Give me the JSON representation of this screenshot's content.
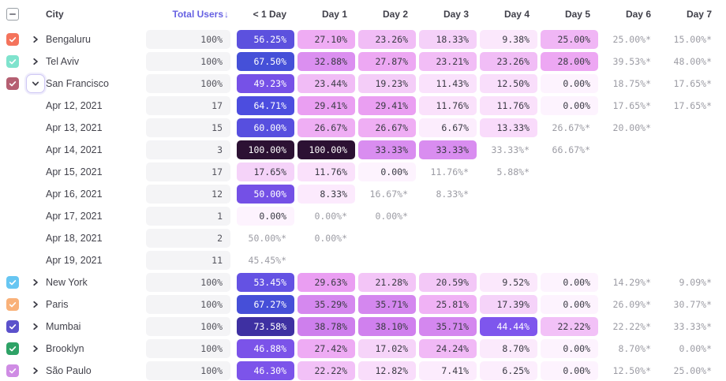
{
  "table": {
    "header": {
      "select_all_state": "indeterminate",
      "columns": [
        "City",
        "Total Users",
        "< 1 Day",
        "Day 1",
        "Day 2",
        "Day 3",
        "Day 4",
        "Day 5",
        "Day 6",
        "Day 7"
      ],
      "sort_column": "Total Users",
      "sort_icon": "↓"
    },
    "rows": [
      {
        "type": "city",
        "name": "Bengaluru",
        "checkbox_color": "#f4735c",
        "expanded": false,
        "total": "100%",
        "cells": [
          {
            "t": "56.25%",
            "v": 56.25
          },
          {
            "t": "27.10%",
            "v": 27.1
          },
          {
            "t": "23.26%",
            "v": 23.26
          },
          {
            "t": "18.33%",
            "v": 18.33
          },
          {
            "t": "9.38%",
            "v": 9.38
          },
          {
            "t": "25.00%",
            "v": 25.0
          },
          {
            "t": "25.00%*",
            "v": 25.0,
            "e": true
          },
          {
            "t": "15.00%*",
            "v": 15.0,
            "e": true
          }
        ]
      },
      {
        "type": "city",
        "name": "Tel Aviv",
        "checkbox_color": "#7fe3cd",
        "expanded": false,
        "total": "100%",
        "cells": [
          {
            "t": "67.50%",
            "v": 67.5
          },
          {
            "t": "32.88%",
            "v": 32.88
          },
          {
            "t": "27.87%",
            "v": 27.87
          },
          {
            "t": "23.21%",
            "v": 23.21
          },
          {
            "t": "23.26%",
            "v": 23.26
          },
          {
            "t": "28.00%",
            "v": 28.0
          },
          {
            "t": "39.53%*",
            "v": 39.53,
            "e": true
          },
          {
            "t": "48.00%*",
            "v": 48.0,
            "e": true
          }
        ]
      },
      {
        "type": "city",
        "name": "San Francisco",
        "checkbox_color": "#b55f72",
        "expanded": true,
        "total": "100%",
        "cells": [
          {
            "t": "49.23%",
            "v": 49.23
          },
          {
            "t": "23.44%",
            "v": 23.44
          },
          {
            "t": "19.23%",
            "v": 19.23
          },
          {
            "t": "11.43%",
            "v": 11.43
          },
          {
            "t": "12.50%",
            "v": 12.5
          },
          {
            "t": "0.00%",
            "v": 0.0
          },
          {
            "t": "18.75%*",
            "v": 18.75,
            "e": true
          },
          {
            "t": "17.65%*",
            "v": 17.65,
            "e": true
          }
        ]
      },
      {
        "type": "date",
        "name": "Apr 12, 2021",
        "total": "17",
        "cells": [
          {
            "t": "64.71%",
            "v": 64.71
          },
          {
            "t": "29.41%",
            "v": 29.41
          },
          {
            "t": "29.41%",
            "v": 29.41
          },
          {
            "t": "11.76%",
            "v": 11.76
          },
          {
            "t": "11.76%",
            "v": 11.76
          },
          {
            "t": "0.00%",
            "v": 0.0
          },
          {
            "t": "17.65%*",
            "v": 17.65,
            "e": true
          },
          {
            "t": "17.65%*",
            "v": 17.65,
            "e": true
          }
        ]
      },
      {
        "type": "date",
        "name": "Apr 13, 2021",
        "total": "15",
        "cells": [
          {
            "t": "60.00%",
            "v": 60.0
          },
          {
            "t": "26.67%",
            "v": 26.67
          },
          {
            "t": "26.67%",
            "v": 26.67
          },
          {
            "t": "6.67%",
            "v": 6.67
          },
          {
            "t": "13.33%",
            "v": 13.33
          },
          {
            "t": "26.67%*",
            "v": 26.67,
            "e": true
          },
          {
            "t": "20.00%*",
            "v": 20.0,
            "e": true
          },
          null
        ]
      },
      {
        "type": "date",
        "name": "Apr 14, 2021",
        "total": "3",
        "cells": [
          {
            "t": "100.00%",
            "v": 100.0
          },
          {
            "t": "100.00%",
            "v": 100.0
          },
          {
            "t": "33.33%",
            "v": 33.33
          },
          {
            "t": "33.33%",
            "v": 33.33
          },
          {
            "t": "33.33%*",
            "v": 33.33,
            "e": true
          },
          {
            "t": "66.67%*",
            "v": 66.67,
            "e": true
          },
          null,
          null
        ]
      },
      {
        "type": "date",
        "name": "Apr 15, 2021",
        "total": "17",
        "cells": [
          {
            "t": "17.65%",
            "v": 17.65
          },
          {
            "t": "11.76%",
            "v": 11.76
          },
          {
            "t": "0.00%",
            "v": 0.0
          },
          {
            "t": "11.76%*",
            "v": 11.76,
            "e": true
          },
          {
            "t": "5.88%*",
            "v": 5.88,
            "e": true
          },
          null,
          null,
          null
        ]
      },
      {
        "type": "date",
        "name": "Apr 16, 2021",
        "total": "12",
        "cells": [
          {
            "t": "50.00%",
            "v": 50.0
          },
          {
            "t": "8.33%",
            "v": 8.33
          },
          {
            "t": "16.67%*",
            "v": 16.67,
            "e": true
          },
          {
            "t": "8.33%*",
            "v": 8.33,
            "e": true
          },
          null,
          null,
          null,
          null
        ]
      },
      {
        "type": "date",
        "name": "Apr 17, 2021",
        "total": "1",
        "cells": [
          {
            "t": "0.00%",
            "v": 0.0
          },
          {
            "t": "0.00%*",
            "v": 0.0,
            "e": true
          },
          {
            "t": "0.00%*",
            "v": 0.0,
            "e": true
          },
          null,
          null,
          null,
          null,
          null
        ]
      },
      {
        "type": "date",
        "name": "Apr 18, 2021",
        "total": "2",
        "cells": [
          {
            "t": "50.00%*",
            "v": 50.0,
            "e": true
          },
          {
            "t": "0.00%*",
            "v": 0.0,
            "e": true
          },
          null,
          null,
          null,
          null,
          null,
          null
        ]
      },
      {
        "type": "date",
        "name": "Apr 19, 2021",
        "total": "11",
        "cells": [
          {
            "t": "45.45%*",
            "v": 45.45,
            "e": true
          },
          null,
          null,
          null,
          null,
          null,
          null,
          null
        ]
      },
      {
        "type": "city",
        "name": "New York",
        "checkbox_color": "#67c6f2",
        "expanded": false,
        "total": "100%",
        "cells": [
          {
            "t": "53.45%",
            "v": 53.45
          },
          {
            "t": "29.63%",
            "v": 29.63
          },
          {
            "t": "21.28%",
            "v": 21.28
          },
          {
            "t": "20.59%",
            "v": 20.59
          },
          {
            "t": "9.52%",
            "v": 9.52
          },
          {
            "t": "0.00%",
            "v": 0.0
          },
          {
            "t": "14.29%*",
            "v": 14.29,
            "e": true
          },
          {
            "t": "9.09%*",
            "v": 9.09,
            "e": true
          }
        ]
      },
      {
        "type": "city",
        "name": "Paris",
        "checkbox_color": "#f9b179",
        "expanded": false,
        "total": "100%",
        "cells": [
          {
            "t": "67.27%",
            "v": 67.27
          },
          {
            "t": "35.29%",
            "v": 35.29
          },
          {
            "t": "35.71%",
            "v": 35.71
          },
          {
            "t": "25.81%",
            "v": 25.81
          },
          {
            "t": "17.39%",
            "v": 17.39
          },
          {
            "t": "0.00%",
            "v": 0.0
          },
          {
            "t": "26.09%*",
            "v": 26.09,
            "e": true
          },
          {
            "t": "30.77%*",
            "v": 30.77,
            "e": true
          }
        ]
      },
      {
        "type": "city",
        "name": "Mumbai",
        "checkbox_color": "#5b51cb",
        "expanded": false,
        "total": "100%",
        "cells": [
          {
            "t": "73.58%",
            "v": 73.58
          },
          {
            "t": "38.78%",
            "v": 38.78
          },
          {
            "t": "38.10%",
            "v": 38.1
          },
          {
            "t": "35.71%",
            "v": 35.71
          },
          {
            "t": "44.44%",
            "v": 44.44
          },
          {
            "t": "22.22%",
            "v": 22.22
          },
          {
            "t": "22.22%*",
            "v": 22.22,
            "e": true
          },
          {
            "t": "33.33%*",
            "v": 33.33,
            "e": true
          }
        ]
      },
      {
        "type": "city",
        "name": "Brooklyn",
        "checkbox_color": "#2ea266",
        "expanded": false,
        "total": "100%",
        "cells": [
          {
            "t": "46.88%",
            "v": 46.88
          },
          {
            "t": "27.42%",
            "v": 27.42
          },
          {
            "t": "17.02%",
            "v": 17.02
          },
          {
            "t": "24.24%",
            "v": 24.24
          },
          {
            "t": "8.70%",
            "v": 8.7
          },
          {
            "t": "0.00%",
            "v": 0.0
          },
          {
            "t": "8.70%*",
            "v": 8.7,
            "e": true
          },
          {
            "t": "0.00%*",
            "v": 0.0,
            "e": true
          }
        ]
      },
      {
        "type": "city",
        "name": "São Paulo",
        "checkbox_color": "#cf8ce4",
        "expanded": false,
        "total": "100%",
        "cells": [
          {
            "t": "46.30%",
            "v": 46.3
          },
          {
            "t": "22.22%",
            "v": 22.22
          },
          {
            "t": "12.82%",
            "v": 12.82
          },
          {
            "t": "7.41%",
            "v": 7.41
          },
          {
            "t": "6.25%",
            "v": 6.25
          },
          {
            "t": "0.00%",
            "v": 0.0
          },
          {
            "t": "12.50%*",
            "v": 12.5,
            "e": true
          },
          {
            "t": "25.00%*",
            "v": 25.0,
            "e": true
          }
        ]
      }
    ]
  },
  "colors": {
    "accent": "#6661e2",
    "estimate_text": "#9c9ca4",
    "cell_text_dark": "#3a3a44",
    "cell_text_light": "#ffffff",
    "total_cell_bg": "#f4f4f6",
    "header_text": "#3f3f49",
    "row_text": "#43434c",
    "checkbox_border": "#9aa0a6",
    "expand_button_border": "#cfc8f4",
    "white_text_threshold": 42,
    "heatmap_stops": [
      [
        0,
        "#fdf3fe"
      ],
      [
        7,
        "#fcedfd"
      ],
      [
        10,
        "#fbe7fc"
      ],
      [
        13,
        "#f9dcfb"
      ],
      [
        18,
        "#f5d2f9"
      ],
      [
        21,
        "#f3c6f7"
      ],
      [
        24,
        "#f1baf6"
      ],
      [
        27,
        "#efadf4"
      ],
      [
        30,
        "#e99cf2"
      ],
      [
        33.3,
        "#d98df0"
      ],
      [
        36,
        "#d386ef"
      ],
      [
        39,
        "#ce7eed"
      ],
      [
        44,
        "#7e57ee"
      ],
      [
        47,
        "#7b53e9"
      ],
      [
        50,
        "#7450e6"
      ],
      [
        54,
        "#6152e2"
      ],
      [
        57,
        "#5a50dd"
      ],
      [
        61,
        "#564fe0"
      ],
      [
        65,
        "#4b4ddf"
      ],
      [
        68,
        "#4450d6"
      ],
      [
        74,
        "#3e2e9e"
      ],
      [
        85,
        "#33195f"
      ],
      [
        100,
        "#2c1133"
      ]
    ]
  }
}
